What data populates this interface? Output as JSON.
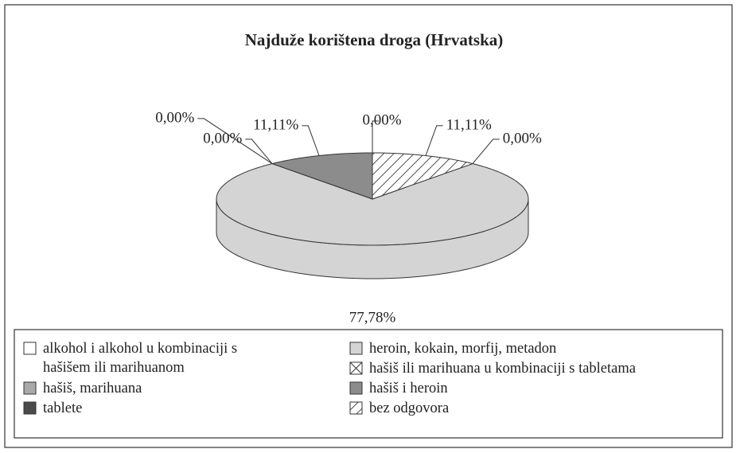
{
  "chart_data": {
    "type": "pie3d",
    "title": "Najduže korištena droga (Hrvatska)",
    "series": [
      {
        "name": "alkohol i alkohol u kombinaciji s hašišem ili marihuanom",
        "color": "#ffffff",
        "value": 0,
        "value_label": "0,00%"
      },
      {
        "name": "heroin, kokain, morfij, metadon",
        "color": "#d4d4d4",
        "value": 77.78,
        "value_label": "77,78%"
      },
      {
        "name": "hašiš, marihuana",
        "color": "#a9a9a9",
        "value": 0,
        "value_label": "0,00%"
      },
      {
        "name": "hašiš ili marihuana u kombinaciji s tabletama",
        "color": "#ffffff",
        "pattern": "cross",
        "value": 0,
        "value_label": "0,00%"
      },
      {
        "name": "hašiš i heroin",
        "color": "#8c8c8c",
        "value": 11.11,
        "value_label": "11,11%"
      },
      {
        "name": "tablete",
        "color": "#4a4a4a",
        "value": 0,
        "value_label": "0,00%"
      },
      {
        "name": "bez odgovora",
        "color": "#ffffff",
        "pattern": "diagonal",
        "value": 11.11,
        "value_label": "11,11%"
      }
    ]
  }
}
